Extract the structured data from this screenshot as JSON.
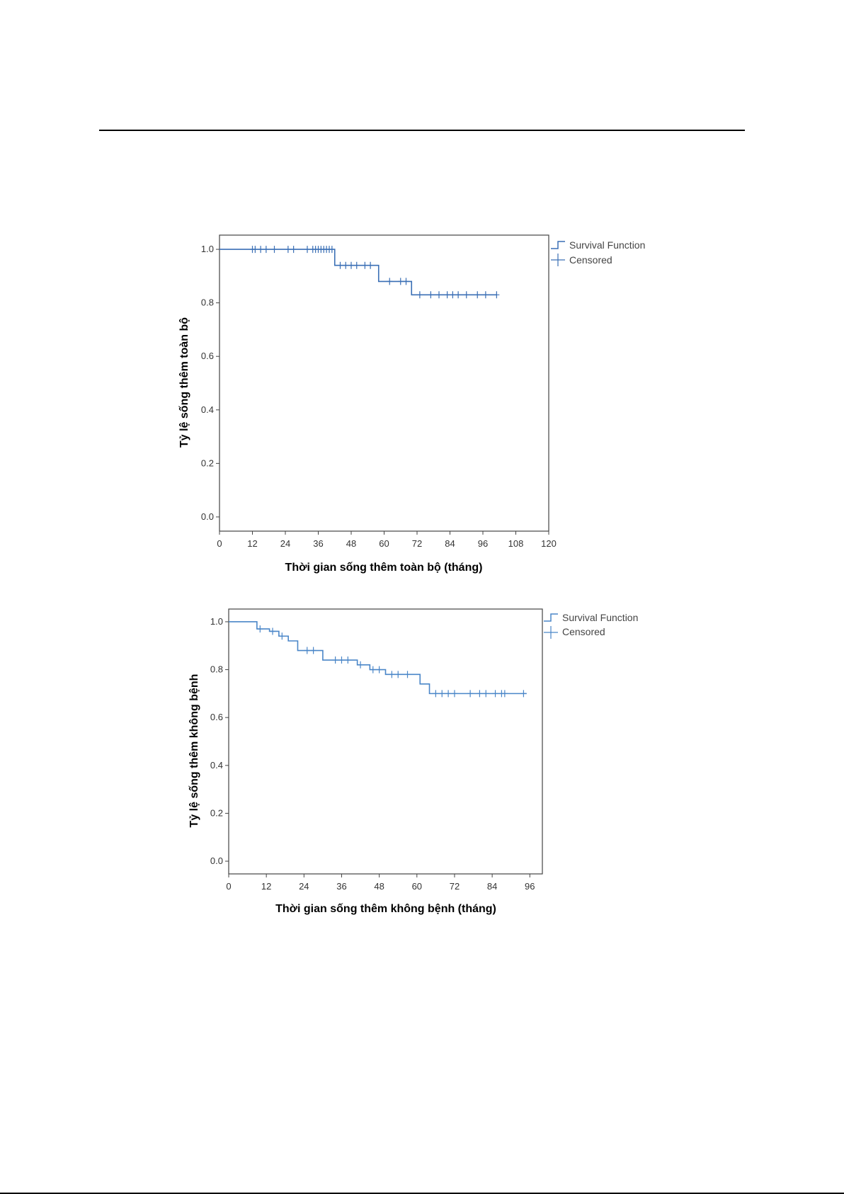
{
  "chart_data": [
    {
      "type": "line",
      "step": true,
      "xlabel": "Thời gian sống thêm toàn bộ (tháng)",
      "ylabel": "Tỷ lệ sống thêm toàn bộ",
      "xlim": [
        0,
        120
      ],
      "ylim": [
        0,
        1.0
      ],
      "x_ticks": [
        0,
        12,
        24,
        36,
        48,
        60,
        72,
        84,
        96,
        108,
        120
      ],
      "y_ticks": [
        "0.0",
        "0.2",
        "0.4",
        "0.6",
        "0.8",
        "1.0"
      ],
      "legend": [
        "Survival Function",
        "Censored"
      ],
      "legend_position": "top-right outside",
      "color": "#3a6fb5",
      "series": [
        {
          "steps": [
            [
              0,
              1.0
            ],
            [
              41,
              1.0
            ],
            [
              42,
              0.94
            ],
            [
              57,
              0.94
            ],
            [
              58,
              0.88
            ],
            [
              69,
              0.88
            ],
            [
              70,
              0.83
            ],
            [
              101,
              0.83
            ]
          ],
          "censored": [
            [
              12,
              1.0
            ],
            [
              13,
              1.0
            ],
            [
              15,
              1.0
            ],
            [
              17,
              1.0
            ],
            [
              20,
              1.0
            ],
            [
              25,
              1.0
            ],
            [
              27,
              1.0
            ],
            [
              32,
              1.0
            ],
            [
              34,
              1.0
            ],
            [
              35,
              1.0
            ],
            [
              36,
              1.0
            ],
            [
              37,
              1.0
            ],
            [
              38,
              1.0
            ],
            [
              39,
              1.0
            ],
            [
              40,
              1.0
            ],
            [
              41,
              1.0
            ],
            [
              44,
              0.94
            ],
            [
              46,
              0.94
            ],
            [
              48,
              0.94
            ],
            [
              50,
              0.94
            ],
            [
              53,
              0.94
            ],
            [
              55,
              0.94
            ],
            [
              62,
              0.88
            ],
            [
              66,
              0.88
            ],
            [
              68,
              0.88
            ],
            [
              73,
              0.83
            ],
            [
              77,
              0.83
            ],
            [
              80,
              0.83
            ],
            [
              83,
              0.83
            ],
            [
              85,
              0.83
            ],
            [
              87,
              0.83
            ],
            [
              90,
              0.83
            ],
            [
              94,
              0.83
            ],
            [
              97,
              0.83
            ],
            [
              101,
              0.83
            ]
          ]
        }
      ]
    },
    {
      "type": "line",
      "step": true,
      "xlabel": "Thời gian sống thêm không bệnh (tháng)",
      "ylabel": "Tỷ lệ sống thêm không bệnh",
      "xlim": [
        0,
        100
      ],
      "ylim": [
        0,
        1.0
      ],
      "x_ticks": [
        0,
        12,
        24,
        36,
        48,
        60,
        72,
        84,
        96
      ],
      "y_ticks": [
        "0.0",
        "0.2",
        "0.4",
        "0.6",
        "0.8",
        "1.0"
      ],
      "legend": [
        "Survival Function",
        "Censored"
      ],
      "legend_position": "top-right outside",
      "color": "#4a86c8",
      "series": [
        {
          "steps": [
            [
              0,
              1.0
            ],
            [
              8,
              1.0
            ],
            [
              9,
              0.97
            ],
            [
              12,
              0.97
            ],
            [
              13,
              0.96
            ],
            [
              15,
              0.96
            ],
            [
              16,
              0.94
            ],
            [
              18,
              0.94
            ],
            [
              19,
              0.92
            ],
            [
              21,
              0.92
            ],
            [
              22,
              0.88
            ],
            [
              29,
              0.88
            ],
            [
              30,
              0.84
            ],
            [
              40,
              0.84
            ],
            [
              41,
              0.82
            ],
            [
              44,
              0.82
            ],
            [
              45,
              0.8
            ],
            [
              49,
              0.8
            ],
            [
              50,
              0.78
            ],
            [
              60,
              0.78
            ],
            [
              61,
              0.74
            ],
            [
              63,
              0.74
            ],
            [
              64,
              0.7
            ],
            [
              95,
              0.7
            ]
          ],
          "censored": [
            [
              10,
              0.97
            ],
            [
              14,
              0.96
            ],
            [
              17,
              0.94
            ],
            [
              25,
              0.88
            ],
            [
              27,
              0.88
            ],
            [
              34,
              0.84
            ],
            [
              36,
              0.84
            ],
            [
              38,
              0.84
            ],
            [
              42,
              0.82
            ],
            [
              46,
              0.8
            ],
            [
              48,
              0.8
            ],
            [
              52,
              0.78
            ],
            [
              54,
              0.78
            ],
            [
              57,
              0.78
            ],
            [
              66,
              0.7
            ],
            [
              68,
              0.7
            ],
            [
              70,
              0.7
            ],
            [
              72,
              0.7
            ],
            [
              77,
              0.7
            ],
            [
              80,
              0.7
            ],
            [
              82,
              0.7
            ],
            [
              85,
              0.7
            ],
            [
              87,
              0.7
            ],
            [
              88,
              0.7
            ],
            [
              94,
              0.7
            ]
          ]
        }
      ]
    }
  ]
}
